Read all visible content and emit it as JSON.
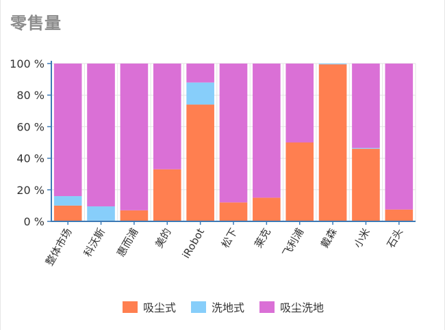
{
  "title": "零售量",
  "chart_data": {
    "type": "bar",
    "stacked": true,
    "categories": [
      "整体市场",
      "科沃斯",
      "惠而浦",
      "美的",
      "iRobot",
      "松下",
      "莱克",
      "飞利浦",
      "戴森",
      "小米",
      "石头"
    ],
    "series": [
      {
        "name": "吸尘式",
        "color": "#ff7f50",
        "values": [
          10,
          0.5,
          7,
          33,
          74,
          12,
          15,
          50,
          99.5,
          46,
          7.5
        ]
      },
      {
        "name": "洗地式",
        "color": "#87cefa",
        "values": [
          6,
          9,
          0,
          0,
          14,
          0,
          0,
          0,
          0.5,
          0.5,
          0
        ]
      },
      {
        "name": "吸尘洗地",
        "color": "#da70d6",
        "values": [
          84,
          90.5,
          93,
          67,
          12,
          88,
          85,
          50,
          0,
          53.5,
          92.5
        ]
      }
    ],
    "yticks": [
      "0 %",
      "20 %",
      "40 %",
      "60 %",
      "80 %",
      "100 %"
    ],
    "ylim": [
      0,
      100
    ],
    "grid": true,
    "legend_position": "bottom"
  }
}
